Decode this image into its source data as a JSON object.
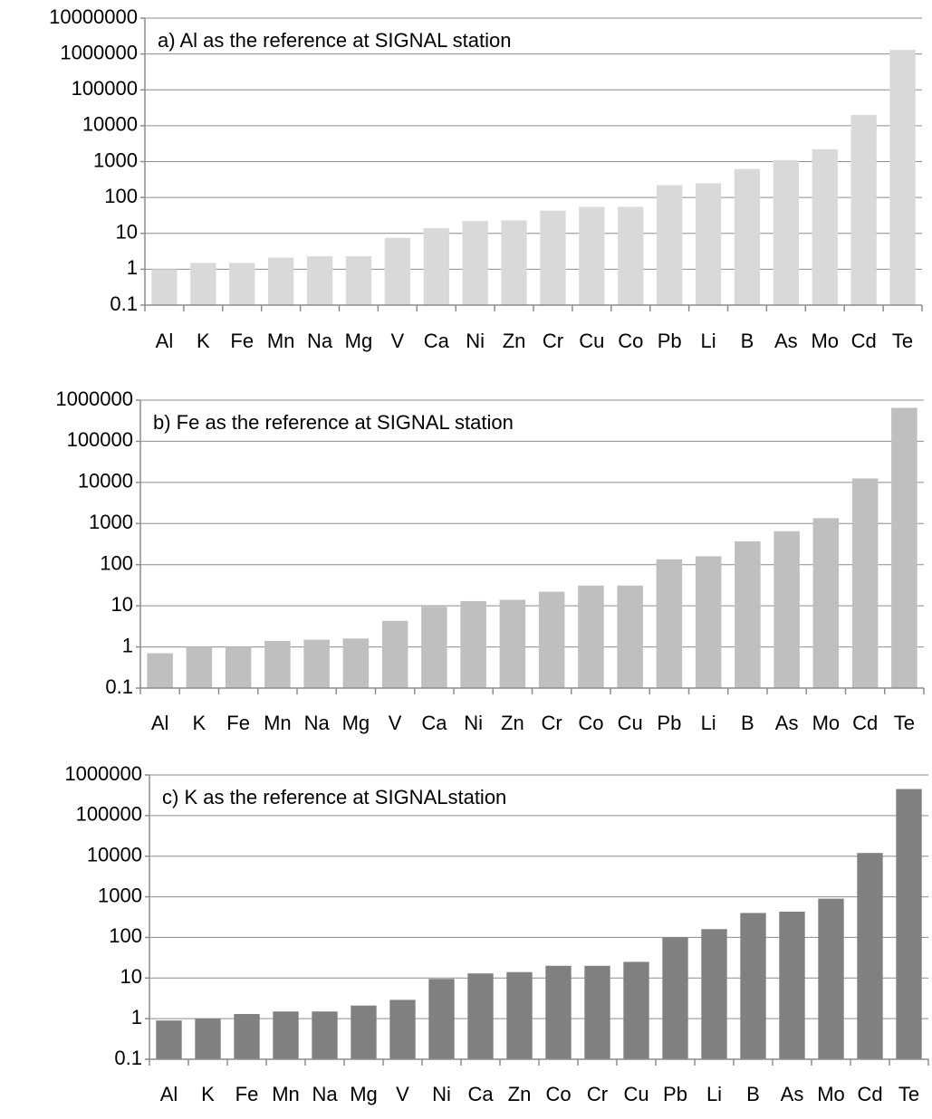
{
  "chart_data": [
    {
      "type": "bar",
      "yscale": "log",
      "grid": true,
      "title": "a) Al as the reference at SIGNAL station",
      "categories": [
        "Al",
        "K",
        "Fe",
        "Mn",
        "Na",
        "Mg",
        "V",
        "Ca",
        "Ni",
        "Zn",
        "Cr",
        "Cu",
        "Co",
        "Pb",
        "Li",
        "B",
        "As",
        "Mo",
        "Cd",
        "Te"
      ],
      "values": [
        1,
        1.5,
        1.5,
        2.1,
        2.3,
        2.3,
        7.5,
        14,
        22,
        23,
        43,
        55,
        55,
        220,
        250,
        620,
        1100,
        2200,
        20000,
        1300000
      ],
      "color": "#d9d9d9",
      "ylim": [
        0.1,
        10000000
      ],
      "yticks": [
        0.1,
        1,
        10,
        100,
        1000,
        10000,
        100000,
        1000000,
        10000000
      ]
    },
    {
      "type": "bar",
      "yscale": "log",
      "grid": true,
      "title": "b) Fe as the reference at SIGNAL station",
      "categories": [
        "Al",
        "K",
        "Fe",
        "Mn",
        "Na",
        "Mg",
        "V",
        "Ca",
        "Ni",
        "Zn",
        "Cr",
        "Co",
        "Cu",
        "Pb",
        "Li",
        "B",
        "As",
        "Mo",
        "Cd",
        "Te"
      ],
      "values": [
        0.7,
        1,
        1,
        1.4,
        1.5,
        1.6,
        4.3,
        9.5,
        13,
        14,
        22,
        31,
        31,
        135,
        160,
        370,
        650,
        1350,
        12500,
        650000
      ],
      "color": "#bfbfbf",
      "ylim": [
        0.1,
        1000000
      ],
      "yticks": [
        0.1,
        1,
        10,
        100,
        1000,
        10000,
        100000,
        1000000
      ]
    },
    {
      "type": "bar",
      "yscale": "log",
      "grid": true,
      "title": "c) K as the reference at SIGNALstation",
      "categories": [
        "Al",
        "K",
        "Fe",
        "Mn",
        "Na",
        "Mg",
        "V",
        "Ni",
        "Ca",
        "Zn",
        "Co",
        "Cr",
        "Cu",
        "Pb",
        "Li",
        "B",
        "As",
        "Mo",
        "Cd",
        "Te"
      ],
      "values": [
        0.9,
        1,
        1.3,
        1.5,
        1.5,
        2.1,
        2.9,
        9.5,
        13,
        14,
        20,
        20,
        25,
        100,
        160,
        400,
        430,
        900,
        12000,
        450000
      ],
      "color": "#808080",
      "ylim": [
        0.1,
        1000000
      ],
      "yticks": [
        0.1,
        1,
        10,
        100,
        1000,
        10000,
        100000,
        1000000
      ]
    }
  ]
}
